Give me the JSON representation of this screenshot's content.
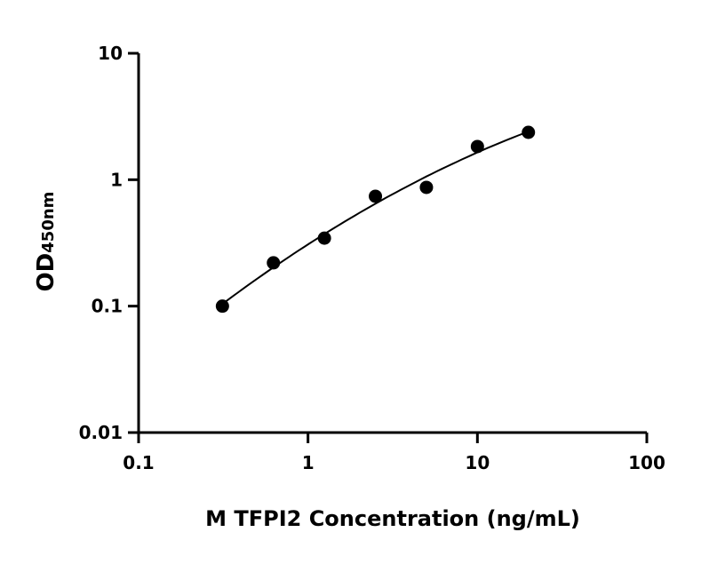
{
  "chart_data": {
    "type": "scatter",
    "title": "",
    "xlabel": "M TFPI2 Concentration (ng/mL)",
    "ylabel_main": "OD",
    "ylabel_sub": "450nm",
    "x_scale": "log",
    "y_scale": "log",
    "xlim": [
      0.1,
      100
    ],
    "ylim": [
      0.01,
      10
    ],
    "x_ticks": [
      0.1,
      1,
      10,
      100
    ],
    "x_tick_labels": [
      "0.1",
      "1",
      "10",
      "100"
    ],
    "y_ticks": [
      0.01,
      0.1,
      1,
      10
    ],
    "y_tick_labels": [
      "0.01",
      "0.1",
      "1",
      "10"
    ],
    "grid": false,
    "series": [
      {
        "x": [
          0.3125,
          0.625,
          1.25,
          2.5,
          5,
          10,
          20
        ],
        "y": [
          0.1,
          0.22,
          0.345,
          0.74,
          0.87,
          1.83,
          2.37
        ],
        "fit_curve": true
      }
    ],
    "colors": {
      "points": "#000000",
      "line": "#000000"
    }
  }
}
